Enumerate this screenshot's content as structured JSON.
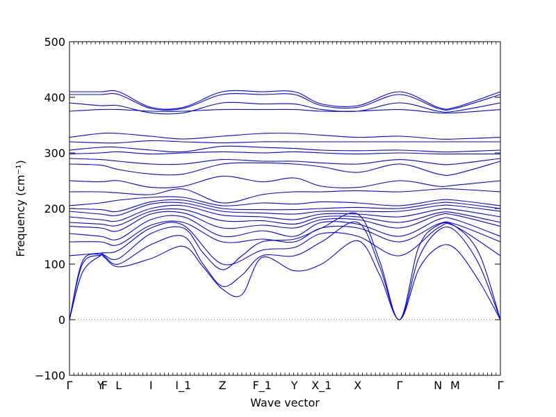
{
  "chart_data": {
    "type": "line",
    "xlabel": "Wave vector",
    "ylabel": "Frequency (cm⁻¹)",
    "ylim": [
      -100,
      500
    ],
    "yticks": [
      -100,
      0,
      100,
      200,
      300,
      400,
      500
    ],
    "xlim": [
      0,
      1
    ],
    "grid": false,
    "zero_line": 0,
    "band_color": "#0000ee",
    "high_symmetry_points": [
      {
        "label": "Γ",
        "x": 0.0
      },
      {
        "label": "Y",
        "x": 0.072
      },
      {
        "label": "F",
        "x": 0.081
      },
      {
        "label": "L",
        "x": 0.114
      },
      {
        "label": "I",
        "x": 0.189
      },
      {
        "label": "I_1",
        "x": 0.264
      },
      {
        "label": "Z",
        "x": 0.355
      },
      {
        "label": "F_1",
        "x": 0.447
      },
      {
        "label": "Y",
        "x": 0.522
      },
      {
        "label": "X_1",
        "x": 0.585
      },
      {
        "label": "X",
        "x": 0.669
      },
      {
        "label": "Γ",
        "x": 0.766
      },
      {
        "label": "N",
        "x": 0.855
      },
      {
        "label": "M",
        "x": 0.895
      },
      {
        "label": "Γ",
        "x": 1.0
      }
    ],
    "series": [
      {
        "x": [
          0,
          0.03,
          0.072,
          0.081,
          0.114,
          0.189,
          0.264,
          0.31,
          0.355,
          0.4,
          0.447,
          0.522,
          0.585,
          0.669,
          0.72,
          0.766,
          0.81,
          0.855,
          0.895,
          0.95,
          1.0
        ],
        "y": [
          0,
          85,
          115,
          112,
          95,
          110,
          132,
          95,
          55,
          45,
          112,
          88,
          100,
          142,
          80,
          0,
          90,
          130,
          128,
          70,
          0
        ]
      },
      {
        "x": [
          0,
          0.03,
          0.072,
          0.081,
          0.114,
          0.189,
          0.264,
          0.31,
          0.355,
          0.4,
          0.447,
          0.522,
          0.585,
          0.669,
          0.72,
          0.766,
          0.81,
          0.855,
          0.895,
          0.95,
          1.0
        ],
        "y": [
          0,
          100,
          116,
          114,
          100,
          135,
          150,
          100,
          60,
          80,
          115,
          115,
          140,
          175,
          95,
          0,
          110,
          160,
          160,
          100,
          0
        ]
      },
      {
        "x": [
          0,
          0.03,
          0.072,
          0.081,
          0.114,
          0.189,
          0.264,
          0.31,
          0.355,
          0.4,
          0.447,
          0.522,
          0.585,
          0.669,
          0.72,
          0.766,
          0.81,
          0.855,
          0.895,
          0.95,
          1.0
        ],
        "y": [
          0,
          105,
          118,
          116,
          110,
          155,
          165,
          120,
          90,
          115,
          140,
          145,
          165,
          190,
          105,
          0,
          130,
          170,
          168,
          120,
          0
        ]
      },
      {
        "x": [
          0,
          0.072,
          0.114,
          0.189,
          0.264,
          0.355,
          0.447,
          0.522,
          0.585,
          0.669,
          0.766,
          0.855,
          0.895,
          1.0
        ],
        "y": [
          115,
          120,
          125,
          165,
          170,
          100,
          125,
          130,
          155,
          150,
          115,
          165,
          168,
          115
        ]
      },
      {
        "x": [
          0,
          0.072,
          0.114,
          0.189,
          0.264,
          0.355,
          0.447,
          0.522,
          0.585,
          0.669,
          0.766,
          0.855,
          0.895,
          1.0
        ],
        "y": [
          140,
          140,
          135,
          170,
          175,
          140,
          145,
          140,
          165,
          165,
          140,
          172,
          172,
          140
        ]
      },
      {
        "x": [
          0,
          0.072,
          0.114,
          0.189,
          0.264,
          0.355,
          0.447,
          0.522,
          0.585,
          0.669,
          0.766,
          0.855,
          0.895,
          1.0
        ],
        "y": [
          155,
          150,
          145,
          180,
          185,
          150,
          160,
          150,
          175,
          172,
          150,
          180,
          180,
          150
        ]
      },
      {
        "x": [
          0,
          0.072,
          0.114,
          0.189,
          0.264,
          0.355,
          0.447,
          0.522,
          0.585,
          0.669,
          0.766,
          0.855,
          0.895,
          1.0
        ],
        "y": [
          168,
          165,
          160,
          190,
          192,
          165,
          170,
          165,
          180,
          180,
          165,
          188,
          188,
          168
        ]
      },
      {
        "x": [
          0,
          0.072,
          0.114,
          0.189,
          0.264,
          0.355,
          0.447,
          0.522,
          0.585,
          0.669,
          0.766,
          0.855,
          0.895,
          1.0
        ],
        "y": [
          175,
          172,
          170,
          195,
          198,
          178,
          178,
          172,
          185,
          185,
          175,
          192,
          192,
          175
        ]
      },
      {
        "x": [
          0,
          0.072,
          0.114,
          0.189,
          0.264,
          0.355,
          0.447,
          0.522,
          0.585,
          0.669,
          0.766,
          0.855,
          0.895,
          1.0
        ],
        "y": [
          185,
          180,
          178,
          200,
          205,
          188,
          185,
          180,
          190,
          190,
          185,
          198,
          198,
          185
        ]
      },
      {
        "x": [
          0,
          0.072,
          0.114,
          0.189,
          0.264,
          0.355,
          0.447,
          0.522,
          0.585,
          0.669,
          0.766,
          0.855,
          0.895,
          1.0
        ],
        "y": [
          195,
          190,
          188,
          208,
          210,
          195,
          192,
          190,
          195,
          195,
          195,
          205,
          205,
          195
        ]
      },
      {
        "x": [
          0,
          0.072,
          0.114,
          0.189,
          0.264,
          0.355,
          0.447,
          0.522,
          0.585,
          0.669,
          0.766,
          0.855,
          0.895,
          1.0
        ],
        "y": [
          200,
          198,
          195,
          212,
          215,
          200,
          198,
          198,
          200,
          202,
          200,
          210,
          210,
          200
        ]
      },
      {
        "x": [
          0,
          0.072,
          0.114,
          0.189,
          0.264,
          0.355,
          0.447,
          0.522,
          0.585,
          0.669,
          0.766,
          0.855,
          0.895,
          1.0
        ],
        "y": [
          205,
          210,
          215,
          220,
          220,
          205,
          210,
          208,
          212,
          210,
          205,
          215,
          215,
          205
        ]
      },
      {
        "x": [
          0,
          0.072,
          0.114,
          0.189,
          0.264,
          0.355,
          0.447,
          0.522,
          0.585,
          0.669,
          0.766,
          0.855,
          0.895,
          1.0
        ],
        "y": [
          230,
          230,
          228,
          225,
          235,
          210,
          225,
          230,
          230,
          232,
          230,
          235,
          235,
          230
        ]
      },
      {
        "x": [
          0,
          0.072,
          0.114,
          0.189,
          0.264,
          0.355,
          0.447,
          0.522,
          0.585,
          0.669,
          0.766,
          0.855,
          0.895,
          1.0
        ],
        "y": [
          250,
          248,
          250,
          238,
          240,
          258,
          248,
          255,
          240,
          238,
          250,
          240,
          242,
          250
        ]
      },
      {
        "x": [
          0,
          0.072,
          0.114,
          0.189,
          0.264,
          0.355,
          0.447,
          0.522,
          0.585,
          0.669,
          0.766,
          0.855,
          0.895,
          1.0
        ],
        "y": [
          280,
          278,
          270,
          262,
          262,
          280,
          282,
          280,
          275,
          265,
          280,
          262,
          262,
          285
        ]
      },
      {
        "x": [
          0,
          0.072,
          0.114,
          0.189,
          0.264,
          0.355,
          0.447,
          0.522,
          0.585,
          0.669,
          0.766,
          0.855,
          0.895,
          1.0
        ],
        "y": [
          290,
          288,
          285,
          280,
          280,
          288,
          285,
          285,
          282,
          280,
          288,
          280,
          280,
          290
        ]
      },
      {
        "x": [
          0,
          0.072,
          0.114,
          0.189,
          0.264,
          0.355,
          0.447,
          0.522,
          0.585,
          0.669,
          0.766,
          0.855,
          0.895,
          1.0
        ],
        "y": [
          298,
          300,
          302,
          298,
          300,
          302,
          300,
          302,
          300,
          298,
          300,
          298,
          298,
          298
        ]
      },
      {
        "x": [
          0,
          0.072,
          0.114,
          0.189,
          0.264,
          0.355,
          0.447,
          0.522,
          0.585,
          0.669,
          0.766,
          0.855,
          0.895,
          1.0
        ],
        "y": [
          305,
          310,
          310,
          305,
          302,
          312,
          310,
          308,
          305,
          304,
          305,
          302,
          302,
          305
        ]
      },
      {
        "x": [
          0,
          0.072,
          0.114,
          0.189,
          0.264,
          0.355,
          0.447,
          0.522,
          0.585,
          0.669,
          0.766,
          0.855,
          0.895,
          1.0
        ],
        "y": [
          320,
          318,
          318,
          322,
          320,
          318,
          320,
          320,
          320,
          320,
          320,
          320,
          320,
          320
        ]
      },
      {
        "x": [
          0,
          0.072,
          0.114,
          0.189,
          0.264,
          0.355,
          0.447,
          0.522,
          0.585,
          0.669,
          0.766,
          0.855,
          0.895,
          1.0
        ],
        "y": [
          328,
          335,
          335,
          330,
          325,
          330,
          335,
          335,
          332,
          328,
          330,
          325,
          325,
          328
        ]
      },
      {
        "x": [
          0,
          0.072,
          0.114,
          0.189,
          0.264,
          0.355,
          0.447,
          0.522,
          0.585,
          0.669,
          0.766,
          0.855,
          0.895,
          1.0
        ],
        "y": [
          375,
          378,
          378,
          375,
          375,
          378,
          378,
          378,
          375,
          375,
          378,
          372,
          372,
          378
        ]
      },
      {
        "x": [
          0,
          0.072,
          0.114,
          0.189,
          0.264,
          0.355,
          0.447,
          0.522,
          0.585,
          0.669,
          0.766,
          0.855,
          0.895,
          1.0
        ],
        "y": [
          390,
          385,
          385,
          372,
          372,
          390,
          388,
          388,
          378,
          375,
          390,
          375,
          375,
          390
        ]
      },
      {
        "x": [
          0,
          0.072,
          0.114,
          0.189,
          0.264,
          0.355,
          0.447,
          0.522,
          0.585,
          0.669,
          0.766,
          0.855,
          0.895,
          1.0
        ],
        "y": [
          405,
          405,
          405,
          380,
          380,
          405,
          405,
          405,
          385,
          382,
          405,
          380,
          380,
          405
        ]
      },
      {
        "x": [
          0,
          0.072,
          0.114,
          0.189,
          0.264,
          0.355,
          0.447,
          0.522,
          0.585,
          0.669,
          0.766,
          0.855,
          0.895,
          1.0
        ],
        "y": [
          410,
          410,
          410,
          382,
          382,
          410,
          410,
          410,
          388,
          385,
          410,
          382,
          382,
          410
        ]
      }
    ]
  }
}
